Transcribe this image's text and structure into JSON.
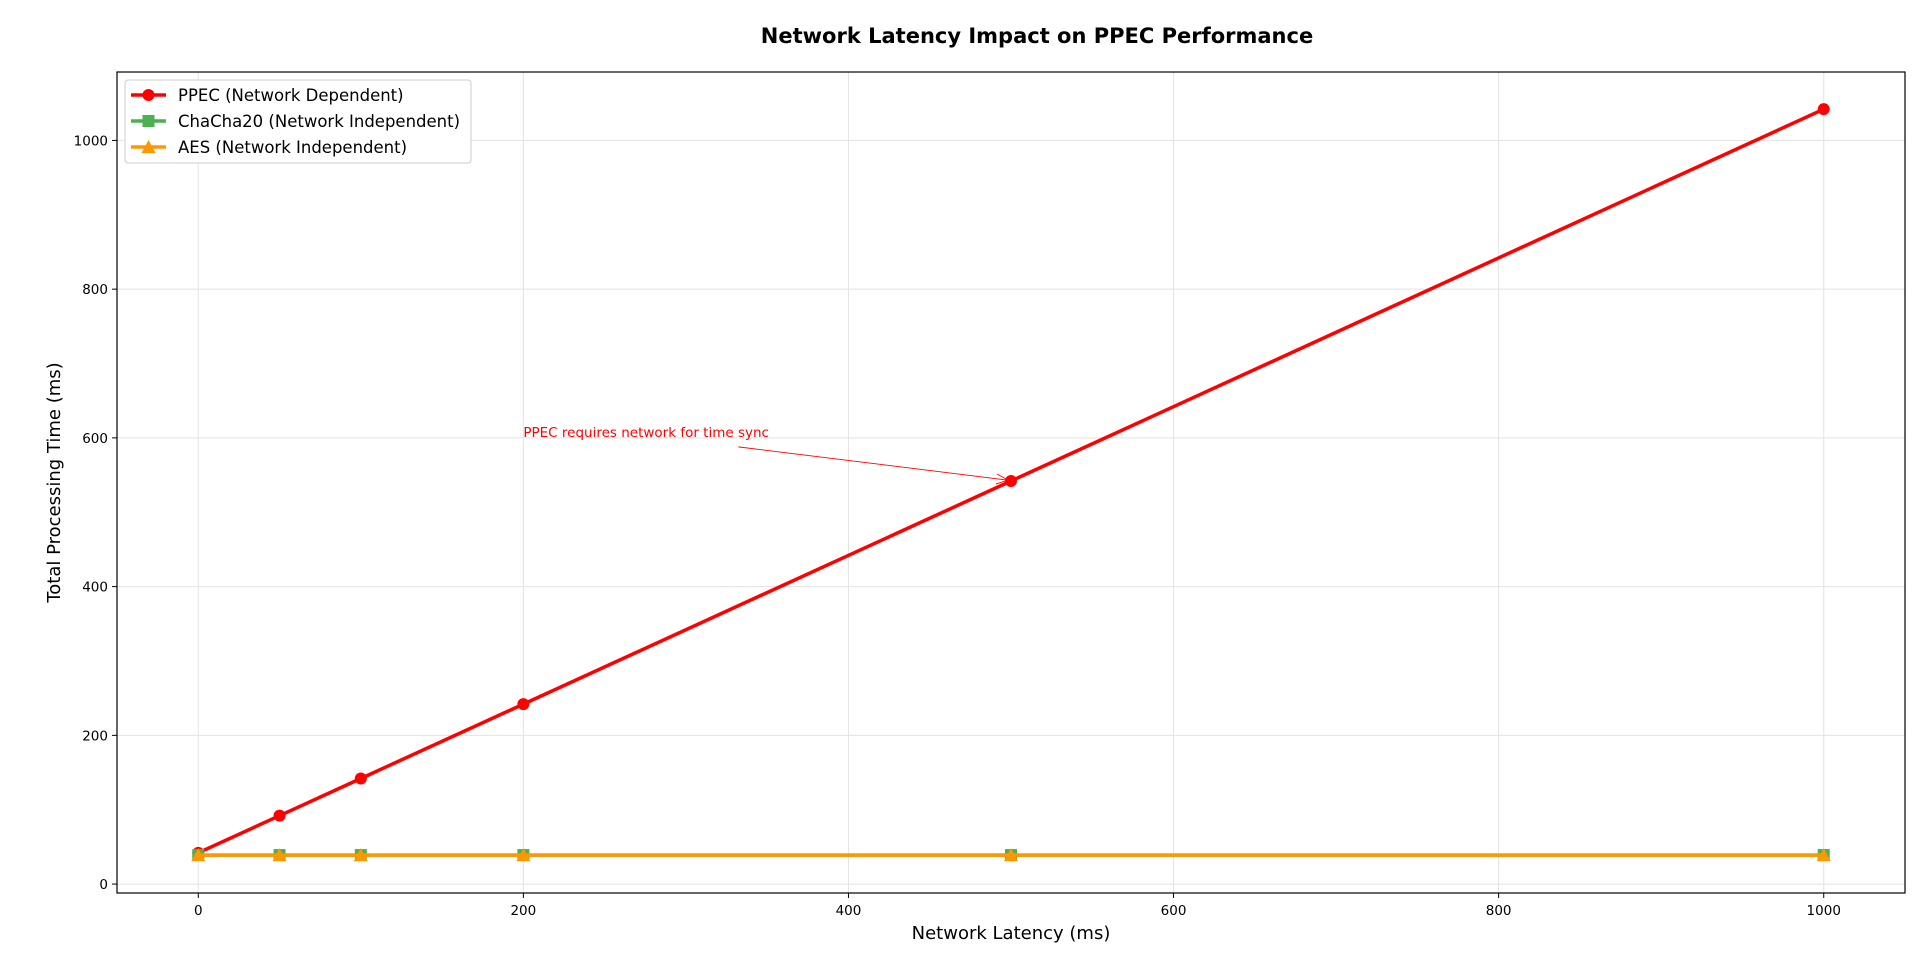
{
  "chart_data": {
    "type": "line",
    "title": "Network Latency Impact on PPEC Performance",
    "xlabel": "Network Latency (ms)",
    "ylabel": "Total Processing Time (ms)",
    "xlim": [
      -50,
      1050
    ],
    "ylim": [
      -12,
      1092
    ],
    "x_ticks": [
      0,
      200,
      400,
      600,
      800,
      1000
    ],
    "y_ticks": [
      0,
      200,
      400,
      600,
      800,
      1000
    ],
    "grid": true,
    "legend_position": "top-left",
    "x": [
      0,
      50,
      100,
      200,
      500,
      1000
    ],
    "series": [
      {
        "name": "PPEC (Network Dependent)",
        "values": [
          42,
          92,
          142,
          242,
          542,
          1042
        ],
        "color": "#ff0000",
        "marker": "circle"
      },
      {
        "name": "ChaCha20 (Network Independent)",
        "values": [
          39,
          39,
          39,
          39,
          39,
          39
        ],
        "color": "#4caf50",
        "marker": "square"
      },
      {
        "name": "AES (Network Independent)",
        "values": [
          39,
          39,
          39,
          39,
          39,
          39
        ],
        "color": "#ff9800",
        "marker": "triangle"
      }
    ],
    "annotation": {
      "text": "PPEC requires network for time sync",
      "point": [
        500,
        542
      ],
      "text_pos": [
        200,
        600
      ],
      "color": "#ff0000"
    }
  }
}
